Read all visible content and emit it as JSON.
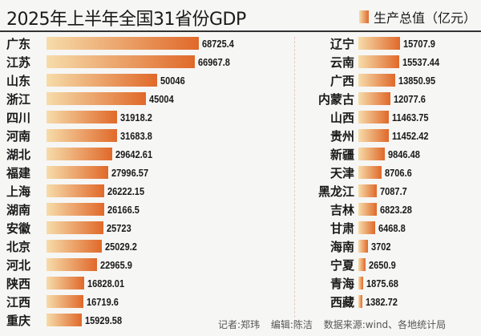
{
  "chart_data": {
    "type": "bar",
    "title": "2025年上半年全国31省份GDP",
    "legend": {
      "label": "生产总值（亿元）",
      "position": "top-right"
    },
    "series": [
      {
        "name": "生产总值（亿元）"
      }
    ],
    "left": [
      {
        "name": "广东",
        "value": "68725.4"
      },
      {
        "name": "江苏",
        "value": "66967.8"
      },
      {
        "name": "山东",
        "value": "50046"
      },
      {
        "name": "浙江",
        "value": "45004"
      },
      {
        "name": "四川",
        "value": "31918.2"
      },
      {
        "name": "河南",
        "value": "31683.8"
      },
      {
        "name": "湖北",
        "value": "29642.61"
      },
      {
        "name": "福建",
        "value": "27996.57"
      },
      {
        "name": "上海",
        "value": "26222.15"
      },
      {
        "name": "湖南",
        "value": "26166.5"
      },
      {
        "name": "安徽",
        "value": "25723"
      },
      {
        "name": "北京",
        "value": "25029.2"
      },
      {
        "name": "河北",
        "value": "22965.9"
      },
      {
        "name": "陕西",
        "value": "16828.01"
      },
      {
        "name": "江西",
        "value": "16719.6"
      },
      {
        "name": "重庆",
        "value": "15929.58"
      }
    ],
    "right": [
      {
        "name": "辽宁",
        "value": "15707.9"
      },
      {
        "name": "云南",
        "value": "15537.44"
      },
      {
        "name": "广西",
        "value": "13850.95"
      },
      {
        "name": "内蒙古",
        "value": "12077.6"
      },
      {
        "name": "山西",
        "value": "11463.75"
      },
      {
        "name": "贵州",
        "value": "11452.42"
      },
      {
        "name": "新疆",
        "value": "9846.48"
      },
      {
        "name": "天津",
        "value": "8706.6"
      },
      {
        "name": "黑龙江",
        "value": "7087.7"
      },
      {
        "name": "吉林",
        "value": "6823.28"
      },
      {
        "name": "甘肃",
        "value": "6468.8"
      },
      {
        "name": "海南",
        "value": "3702"
      },
      {
        "name": "宁夏",
        "value": "2650.9"
      },
      {
        "name": "青海",
        "value": "1875.68"
      },
      {
        "name": "西藏",
        "value": "1382.72"
      }
    ],
    "colors": {
      "bar_start": "#f6dcaa",
      "bar_end": "#e0692a"
    }
  },
  "footer": {
    "reporter": "记者:郑玮",
    "editor": "编辑:陈洁",
    "source": "数据来源:wind、各地统计局"
  }
}
